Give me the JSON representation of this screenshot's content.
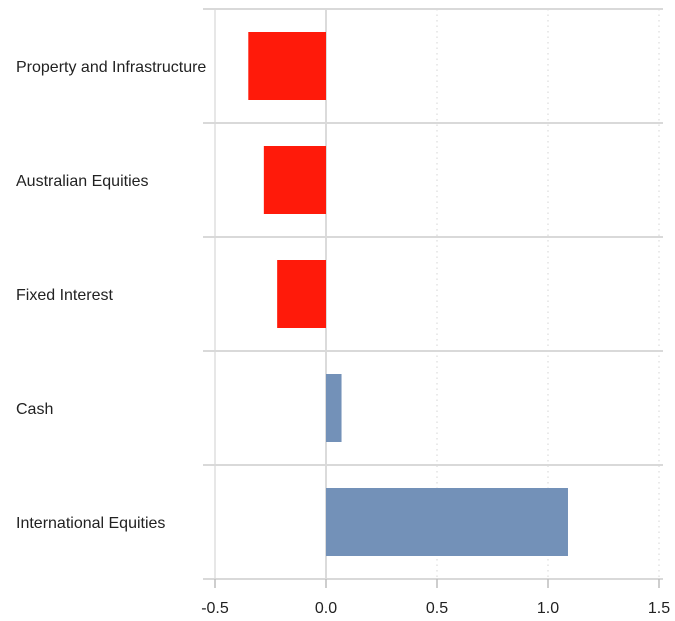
{
  "chart_data": {
    "type": "bar",
    "orientation": "horizontal",
    "categories": [
      "Property and Infrastructure",
      "Australian Equities",
      "Fixed Interest",
      "Cash",
      "International Equities"
    ],
    "values": [
      -0.35,
      -0.28,
      -0.22,
      0.07,
      1.09
    ],
    "xlim": [
      -0.5,
      1.5
    ],
    "xticks": [
      -0.5,
      0.0,
      0.5,
      1.0,
      1.5
    ],
    "xtick_labels": [
      "-0.5",
      "0.0",
      "0.5",
      "1.0",
      "1.5"
    ],
    "grid": "vertical dotted",
    "legend": "none",
    "colors": {
      "positive": "#7391b8",
      "negative": "#ff1a0a"
    }
  }
}
